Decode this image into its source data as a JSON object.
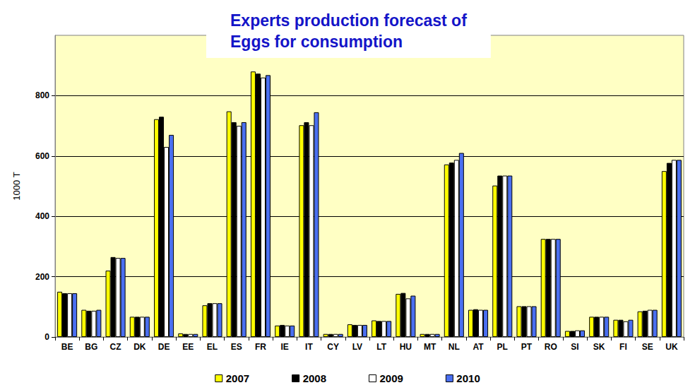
{
  "chart_data": {
    "type": "bar",
    "title": "Experts production forecast of\nEggs for consumption",
    "y_label": "1000 T",
    "categories": [
      "BE",
      "BG",
      "CZ",
      "DK",
      "DE",
      "EE",
      "EL",
      "ES",
      "FR",
      "IE",
      "IT",
      "CY",
      "LV",
      "LT",
      "HU",
      "MT",
      "NL",
      "AT",
      "PL",
      "PT",
      "RO",
      "SI",
      "SK",
      "FI",
      "SE",
      "UK"
    ],
    "series": [
      {
        "name": "2007",
        "color": "#ffff00",
        "values": [
          150,
          90,
          220,
          67,
          722,
          12,
          105,
          748,
          880,
          38,
          702,
          10,
          42,
          55,
          143,
          10,
          572,
          90,
          502,
          102,
          325,
          20,
          67,
          57,
          85,
          550
        ]
      },
      {
        "name": "2008",
        "color": "#000000",
        "values": [
          145,
          87,
          265,
          67,
          730,
          10,
          112,
          712,
          873,
          40,
          712,
          10,
          40,
          53,
          146,
          10,
          578,
          92,
          535,
          102,
          325,
          20,
          67,
          57,
          87,
          577
        ]
      },
      {
        "name": "2009",
        "color": "#ffffff",
        "values": [
          145,
          87,
          262,
          67,
          630,
          10,
          112,
          700,
          860,
          38,
          702,
          10,
          40,
          53,
          128,
          10,
          587,
          90,
          535,
          102,
          325,
          22,
          67,
          52,
          90,
          587
        ]
      },
      {
        "name": "2010",
        "color": "#4a6ff0",
        "values": [
          145,
          90,
          262,
          67,
          670,
          10,
          112,
          712,
          868,
          38,
          745,
          10,
          40,
          53,
          137,
          10,
          610,
          90,
          535,
          102,
          325,
          22,
          67,
          57,
          90,
          587
        ]
      }
    ],
    "ylim": [
      0,
      1000
    ],
    "yticks": [
      0,
      200,
      400,
      600,
      800
    ],
    "grid": true,
    "legend": "bottom"
  }
}
